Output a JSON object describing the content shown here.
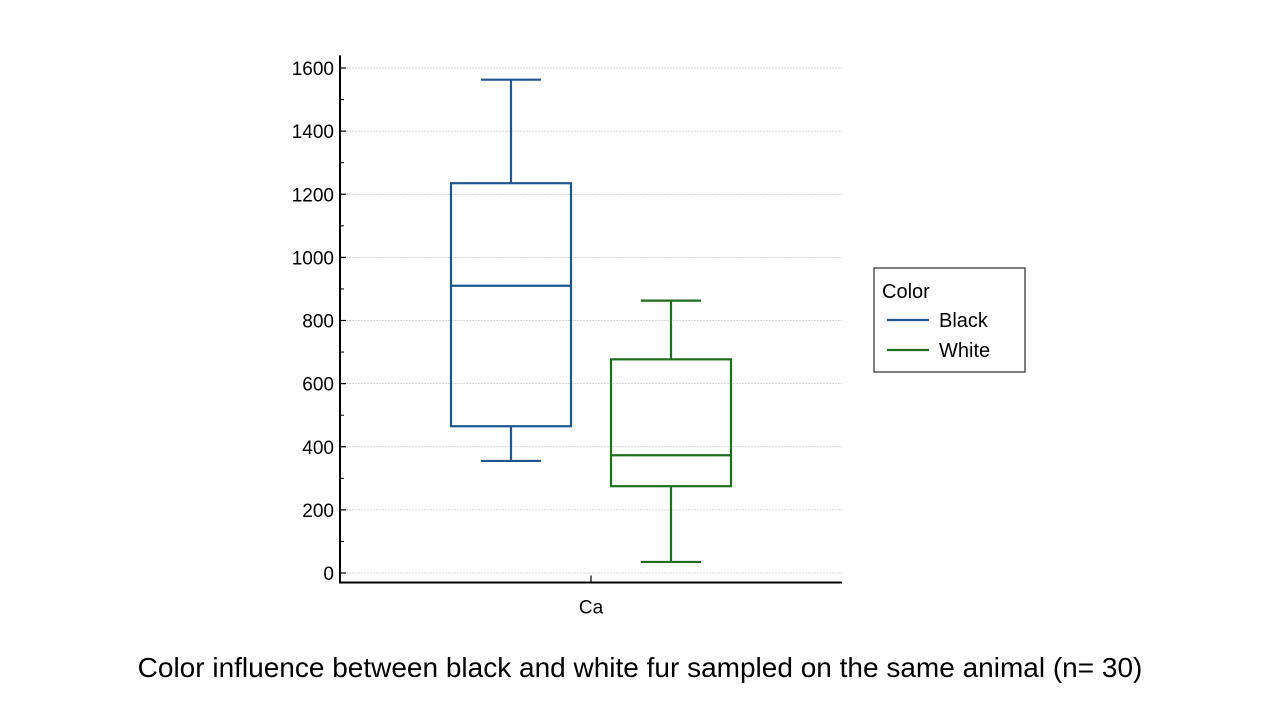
{
  "caption": "Color influence between black and white fur sampled on the same animal (n= 30)",
  "chart_data": {
    "type": "box",
    "categories": [
      "Ca"
    ],
    "ylim": [
      -30,
      1640
    ],
    "yticks": [
      0,
      200,
      400,
      600,
      800,
      1000,
      1200,
      1400,
      1600
    ],
    "grid": true,
    "legend": {
      "title": "Color",
      "placement": "right",
      "entries": [
        "Black",
        "White"
      ]
    },
    "series": [
      {
        "name": "Black",
        "color": "#1f5591",
        "boxes": [
          {
            "category": "Ca",
            "whisker_low": 355,
            "q1": 465,
            "median": 910,
            "q3": 1235,
            "whisker_high": 1563
          }
        ]
      },
      {
        "name": "White",
        "color": "#1e6e1e",
        "boxes": [
          {
            "category": "Ca",
            "whisker_low": 35,
            "q1": 275,
            "median": 373,
            "q3": 677,
            "whisker_high": 863
          }
        ]
      }
    ]
  }
}
